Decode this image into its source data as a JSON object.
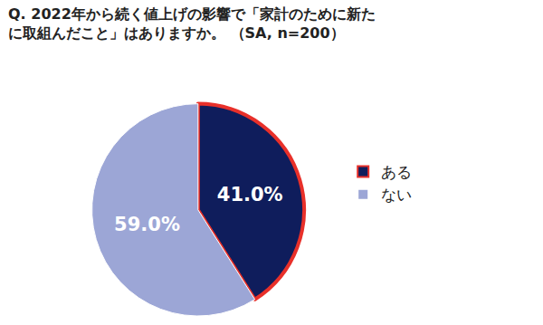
{
  "chart_data": {
    "type": "pie",
    "title": "Q. 2022年から続く値上げの影響で「家計のために新た\nに取組んだこと」はありますか。 （SA, n=200）",
    "categories": [
      "ある",
      "ない"
    ],
    "values": [
      41.0,
      59.0
    ],
    "value_labels": [
      "41.0%",
      "59.0%"
    ],
    "colors": [
      "#0f1d5c",
      "#9ca6d6"
    ],
    "data_labels": true,
    "legend": "right"
  }
}
